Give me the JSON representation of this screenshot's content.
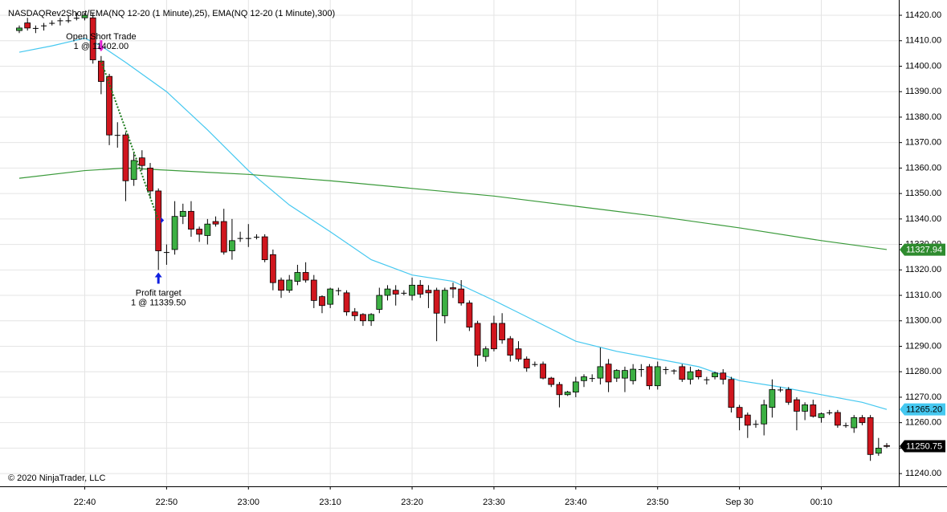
{
  "chart_data": {
    "type": "candlestick",
    "title": "NASDAQRev2Short/EMA(NQ 12-20 (1 Minute),25), EMA(NQ 12-20 (1 Minute),300)",
    "copyright": "© 2020 NinjaTrader, LLC",
    "categories": [
      "22:32",
      "22:33",
      "22:34",
      "22:35",
      "22:36",
      "22:37",
      "22:38",
      "22:39",
      "22:40",
      "22:41",
      "22:42",
      "22:43",
      "22:44",
      "22:45",
      "22:46",
      "22:47",
      "22:48",
      "22:49",
      "22:50",
      "22:51",
      "22:52",
      "22:53",
      "22:54",
      "22:55",
      "22:56",
      "22:57",
      "22:58",
      "22:59",
      "23:00",
      "23:01",
      "23:02",
      "23:03",
      "23:04",
      "23:05",
      "23:06",
      "23:07",
      "23:08",
      "23:09",
      "23:10",
      "23:11",
      "23:12",
      "23:13",
      "23:14",
      "23:15",
      "23:16",
      "23:17",
      "23:18",
      "23:19",
      "23:20",
      "23:21",
      "23:22",
      "23:23",
      "23:24",
      "23:25",
      "23:26",
      "23:27",
      "23:28",
      "23:29",
      "23:30",
      "23:31",
      "23:32",
      "23:33",
      "23:34",
      "23:35",
      "23:36",
      "23:37",
      "23:38",
      "23:39",
      "23:40",
      "23:41",
      "23:42",
      "23:43",
      "23:44",
      "23:45",
      "23:46",
      "23:47",
      "23:48",
      "23:49",
      "23:50",
      "23:51",
      "23:52",
      "23:53",
      "23:54",
      "23:55",
      "23:56",
      "23:57",
      "23:58",
      "23:59",
      "00:00",
      "00:01",
      "00:02",
      "00:03",
      "00:04",
      "00:05",
      "00:06",
      "00:07",
      "00:08",
      "00:09",
      "00:10",
      "00:11",
      "00:12",
      "00:13",
      "00:14",
      "00:15",
      "00:16",
      "00:17",
      "00:18"
    ],
    "open": [
      11414,
      11417,
      11415,
      11416,
      11417,
      11418,
      11418,
      11419,
      11419,
      11419,
      11402,
      11396,
      11373,
      11373,
      11355.5,
      11364,
      11360,
      11351,
      11327,
      11328,
      11341,
      11343,
      11336,
      11333.5,
      11339,
      11339,
      11327.5,
      11332.5,
      11332.5,
      11333,
      11333,
      11326,
      11316,
      11312,
      11315.5,
      11319,
      11316,
      11309.5,
      11306.5,
      11312,
      11311,
      11303.5,
      11302.5,
      11300,
      11304.5,
      11310,
      11312,
      11311,
      11310,
      11314,
      11312,
      11312,
      11302,
      11313,
      11312.5,
      11307,
      11299,
      11286,
      11299,
      11299,
      11293,
      11289,
      11285,
      11283,
      11283,
      11277.5,
      11275,
      11271,
      11272,
      11276.5,
      11277.5,
      11277.5,
      11283,
      11277.5,
      11277.5,
      11276.5,
      11281,
      11282,
      11274.5,
      11281,
      11280.5,
      11282,
      11277,
      11280.5,
      11277,
      11278,
      11279.5,
      11277,
      11266,
      11263,
      11259.5,
      11259.5,
      11266,
      11273,
      11273,
      11269,
      11264.5,
      11267,
      11262,
      11264,
      11264,
      11259,
      11258,
      11262,
      11262,
      11248,
      11251
    ],
    "high": [
      11416,
      11419,
      11416,
      11417,
      11418,
      11419,
      11420,
      11421,
      11421,
      11421,
      11404,
      11397,
      11378,
      11374,
      11366,
      11367,
      11362,
      11352,
      11330,
      11347,
      11346,
      11347,
      11337,
      11340,
      11341,
      11344,
      11340,
      11335,
      11338,
      11334,
      11334,
      11328,
      11317,
      11318,
      11322,
      11323,
      11318,
      11310,
      11313,
      11313,
      11312,
      11305,
      11303,
      11303,
      11313,
      11314,
      11314,
      11312,
      11317,
      11316,
      11314,
      11313,
      11313,
      11315,
      11316,
      11308,
      11300,
      11290,
      11302,
      11303,
      11294,
      11292,
      11286,
      11284,
      11284,
      11278,
      11276,
      11272.5,
      11278,
      11279,
      11279,
      11289.5,
      11285,
      11281,
      11282,
      11283,
      11283,
      11283,
      11284,
      11282,
      11281,
      11283,
      11282,
      11281,
      11278,
      11280,
      11281,
      11278,
      11267,
      11264,
      11261,
      11269,
      11277,
      11274,
      11274,
      11270,
      11268,
      11269,
      11264,
      11265,
      11265,
      11260,
      11263,
      11263,
      11263,
      11254,
      11252
    ],
    "low": [
      11413,
      11414,
      11413,
      11414,
      11416,
      11416,
      11417,
      11418,
      11418,
      11401,
      11389,
      11369,
      11368,
      11347,
      11353,
      11359,
      11348,
      11320,
      11322,
      11326,
      11338,
      11333,
      11331,
      11330,
      11337,
      11326,
      11324,
      11331,
      11329,
      11332,
      11323,
      11312,
      11309,
      11311,
      11314,
      11315,
      11305,
      11303,
      11305,
      11310,
      11302,
      11300,
      11298,
      11298,
      11303,
      11308,
      11306,
      11310,
      11308,
      11309,
      11305,
      11292,
      11299,
      11309,
      11306,
      11296,
      11282,
      11284,
      11288,
      11291,
      11284,
      11284,
      11280,
      11282,
      11277,
      11274,
      11266,
      11270.5,
      11270,
      11274,
      11276,
      11275,
      11272,
      11276,
      11272,
      11275,
      11278,
      11273,
      11273,
      11279,
      11279,
      11276,
      11275,
      11277,
      11275,
      11277,
      11275,
      11264,
      11257,
      11254,
      11258,
      11255,
      11262,
      11272,
      11267,
      11257,
      11261,
      11262,
      11260,
      11263,
      11258,
      11258,
      11256,
      11259,
      11245,
      11247,
      11250
    ],
    "close": [
      11415,
      11415,
      11415,
      11416,
      11417,
      11418,
      11418,
      11419,
      11420,
      11402.5,
      11394,
      11373,
      11373,
      11355,
      11363,
      11361,
      11351,
      11327.5,
      11327,
      11341,
      11343,
      11336,
      11334,
      11338,
      11338,
      11327,
      11331.5,
      11332.5,
      11332.5,
      11333,
      11324,
      11315,
      11312,
      11316,
      11319,
      11316,
      11308,
      11306,
      11312.5,
      11312,
      11303.5,
      11302,
      11300,
      11302.5,
      11310,
      11312.5,
      11310.5,
      11311,
      11314,
      11310.5,
      11311,
      11303,
      11312,
      11312.5,
      11307,
      11297.5,
      11286.5,
      11289,
      11289,
      11292.5,
      11286.5,
      11285,
      11281.5,
      11283,
      11277.5,
      11275,
      11271,
      11272,
      11276,
      11278,
      11277.5,
      11282,
      11276,
      11280.5,
      11280.5,
      11281,
      11281,
      11274.5,
      11282,
      11281,
      11280.5,
      11277,
      11280,
      11278,
      11277,
      11279.5,
      11277,
      11266,
      11262,
      11259,
      11259.5,
      11267,
      11273,
      11273,
      11268,
      11264.5,
      11267,
      11262.5,
      11263.5,
      11264,
      11259,
      11259,
      11262,
      11260,
      11247.5,
      11250,
      11250.75
    ],
    "up_color": "#3cb043",
    "down_color": "#d0161e",
    "wick_color": "#000000",
    "series": [
      {
        "color": "#45c8f0",
        "x": [
          "22:32",
          "22:36",
          "22:40",
          "22:42",
          "22:45",
          "22:50",
          "22:55",
          "23:00",
          "23:05",
          "23:10",
          "23:15",
          "23:20",
          "23:25",
          "23:30",
          "23:35",
          "23:40",
          "23:45",
          "23:50",
          "23:55",
          "00:00",
          "00:05",
          "00:10",
          "00:15",
          "00:18"
        ],
        "values": [
          11405.5,
          11408,
          11411,
          11408,
          11401.5,
          11390,
          11375,
          11359,
          11345.5,
          11335,
          11324,
          11318,
          11315.5,
          11308,
          11300,
          11292,
          11288,
          11285,
          11282,
          11276.5,
          11274,
          11271,
          11268,
          11265.2
        ]
      },
      {
        "color": "#3a9a3a",
        "x": [
          "22:32",
          "22:40",
          "22:45",
          "23:00",
          "23:10",
          "23:20",
          "23:30",
          "23:40",
          "23:50",
          "00:00",
          "00:10",
          "00:18"
        ],
        "values": [
          11356,
          11359,
          11360,
          11357.5,
          11355,
          11352,
          11349,
          11345,
          11341,
          11336.5,
          11331.5,
          11328
        ]
      }
    ],
    "price_markers": [
      {
        "value": 11327.94,
        "label": "11327.94",
        "color": "#2e8b2e",
        "text_color": "#ffffff"
      },
      {
        "value": 11265.2,
        "label": "11265.20",
        "color": "#45c8f0",
        "text_color": "#000000"
      },
      {
        "value": 11250.75,
        "label": "11250.75",
        "color": "#000000",
        "text_color": "#ffffff"
      }
    ],
    "trades": [
      {
        "label": "Open Short Trade",
        "detail": "1 @ 11402.00",
        "time": "22:42",
        "price": 11402,
        "color": "#e020d0"
      },
      {
        "label": "Profit target",
        "detail": "1 @ 11339.50",
        "time": "22:49",
        "price": 11339.5,
        "color": "#1020e0"
      }
    ],
    "trade_line_color": "#1a7a1a",
    "ylim": [
      11235,
      11426
    ],
    "yticks": [
      {
        "value": 11240,
        "label": "11240.00"
      },
      {
        "value": 11250,
        "label": "11250.00"
      },
      {
        "value": 11260,
        "label": "11260.00"
      },
      {
        "value": 11270,
        "label": "11270.00"
      },
      {
        "value": 11280,
        "label": "11280.00"
      },
      {
        "value": 11290,
        "label": "11290.00"
      },
      {
        "value": 11300,
        "label": "11300.00"
      },
      {
        "value": 11310,
        "label": "11310.00"
      },
      {
        "value": 11320,
        "label": "11320.00"
      },
      {
        "value": 11330,
        "label": "11330.00"
      },
      {
        "value": 11340,
        "label": "11340.00"
      },
      {
        "value": 11350,
        "label": "11350.00"
      },
      {
        "value": 11360,
        "label": "11360.00"
      },
      {
        "value": 11370,
        "label": "11370.00"
      },
      {
        "value": 11380,
        "label": "11380.00"
      },
      {
        "value": 11390,
        "label": "11390.00"
      },
      {
        "value": 11400,
        "label": "11400.00"
      },
      {
        "value": 11410,
        "label": "11410.00"
      },
      {
        "value": 11420,
        "label": "11420.00"
      }
    ],
    "xticks": [
      "22:40",
      "22:50",
      "23:00",
      "23:10",
      "23:20",
      "23:30",
      "23:40",
      "23:50",
      {
        "value": "00:00",
        "label": "Sep 30"
      },
      "00:10"
    ],
    "grid": true
  }
}
